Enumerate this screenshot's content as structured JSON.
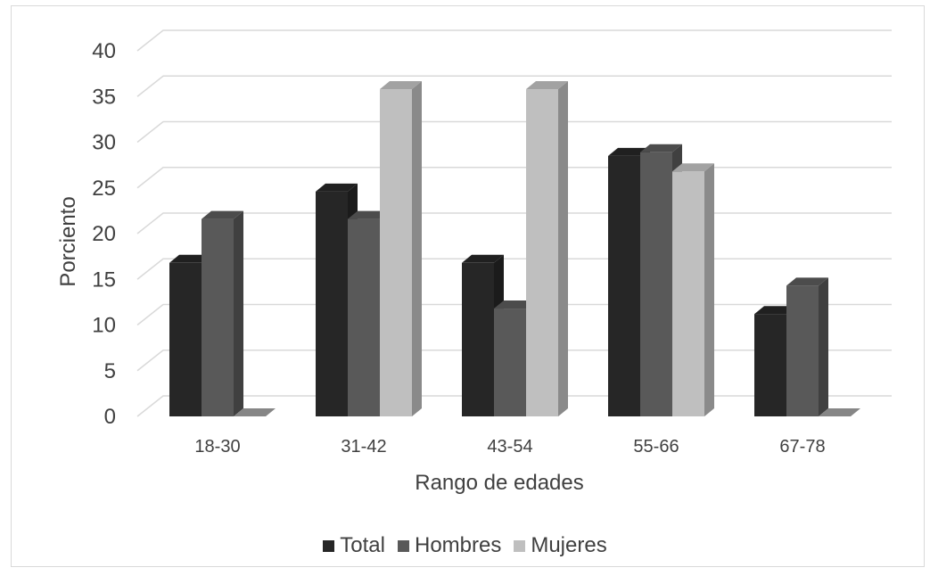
{
  "chart_data": {
    "type": "bar",
    "subtype": "3d-clustered-column",
    "categories": [
      "18-30",
      "31-42",
      "43-54",
      "55-66",
      "67-78"
    ],
    "series": [
      {
        "name": "Total",
        "values": [
          16.8,
          24.6,
          16.8,
          28.5,
          11.2
        ],
        "color": "#262626"
      },
      {
        "name": "Hombres",
        "values": [
          21.6,
          21.6,
          11.8,
          28.9,
          14.3
        ],
        "color": "#595959"
      },
      {
        "name": "Mujeres",
        "values": [
          0,
          35.8,
          35.8,
          26.8,
          0
        ],
        "color": "#bfbfbf"
      }
    ],
    "xlabel": "Rango de edades",
    "ylabel": "Porciento",
    "ylim": [
      0,
      40
    ],
    "yticks": [
      "0",
      "5",
      "10",
      "15",
      "20",
      "25",
      "30",
      "35",
      "40"
    ],
    "grid": true,
    "legend_position": "bottom"
  }
}
